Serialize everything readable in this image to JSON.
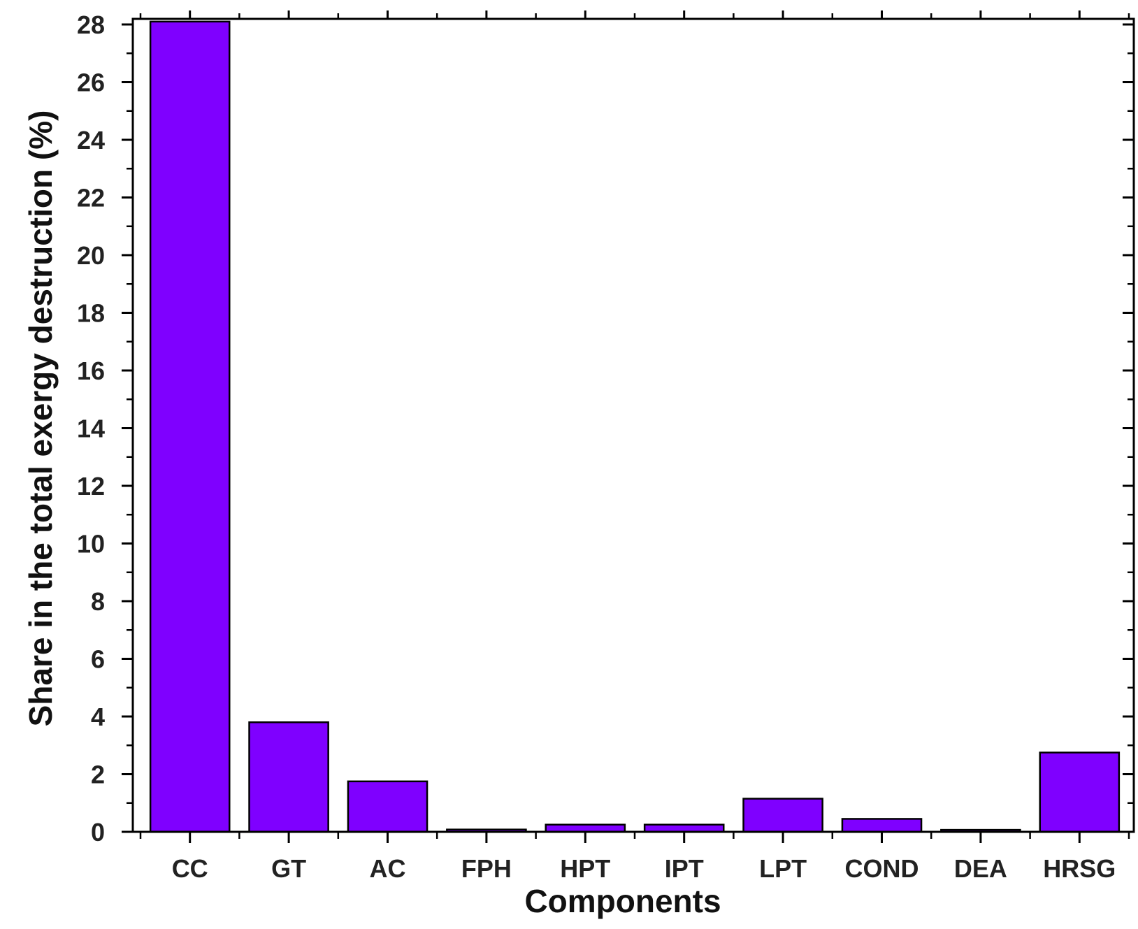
{
  "chart_data": {
    "type": "bar",
    "title": "",
    "xlabel": "Components",
    "ylabel": "Share in the total exergy destruction (%)",
    "categories": [
      "CC",
      "GT",
      "AC",
      "FPH",
      "HPT",
      "IPT",
      "LPT",
      "COND",
      "DEA",
      "HRSG"
    ],
    "values": [
      28.1,
      3.8,
      1.75,
      0.08,
      0.25,
      0.25,
      1.15,
      0.45,
      0.07,
      2.75
    ],
    "ylim": [
      0,
      28
    ],
    "yticks": [
      0,
      2,
      4,
      6,
      8,
      10,
      12,
      14,
      16,
      18,
      20,
      22,
      24,
      26,
      28
    ],
    "bar_color": "#7f00ff",
    "grid": false,
    "legend": "none"
  }
}
